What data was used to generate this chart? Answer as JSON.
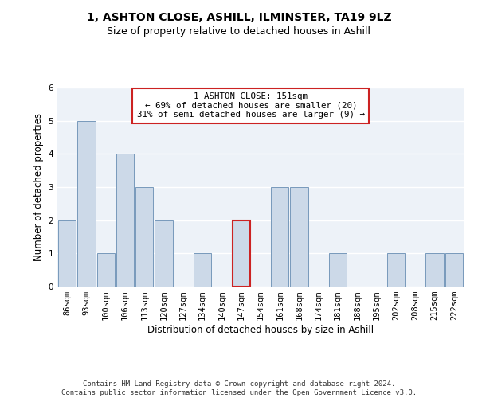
{
  "title": "1, ASHTON CLOSE, ASHILL, ILMINSTER, TA19 9LZ",
  "subtitle": "Size of property relative to detached houses in Ashill",
  "xlabel": "Distribution of detached houses by size in Ashill",
  "ylabel": "Number of detached properties",
  "categories": [
    "86sqm",
    "93sqm",
    "100sqm",
    "106sqm",
    "113sqm",
    "120sqm",
    "127sqm",
    "134sqm",
    "140sqm",
    "147sqm",
    "154sqm",
    "161sqm",
    "168sqm",
    "174sqm",
    "181sqm",
    "188sqm",
    "195sqm",
    "202sqm",
    "208sqm",
    "215sqm",
    "222sqm"
  ],
  "values": [
    2,
    5,
    1,
    4,
    3,
    2,
    0,
    1,
    0,
    2,
    0,
    3,
    3,
    0,
    1,
    0,
    0,
    1,
    0,
    1,
    1
  ],
  "bar_color_default": "#ccd9e8",
  "bar_edge_color": "#7799bb",
  "bar_highlight_index": 9,
  "bar_highlight_edge": "#cc2222",
  "annotation_box_text": "1 ASHTON CLOSE: 151sqm\n← 69% of detached houses are smaller (20)\n31% of semi-detached houses are larger (9) →",
  "ylim": [
    0,
    6
  ],
  "yticks": [
    0,
    1,
    2,
    3,
    4,
    5,
    6
  ],
  "footer": "Contains HM Land Registry data © Crown copyright and database right 2024.\nContains public sector information licensed under the Open Government Licence v3.0.",
  "bg_color": "#edf2f8",
  "grid_color": "#ffffff",
  "title_fontsize": 10,
  "subtitle_fontsize": 9,
  "tick_fontsize": 7.5,
  "ylabel_fontsize": 8.5,
  "xlabel_fontsize": 8.5,
  "footer_fontsize": 6.5
}
